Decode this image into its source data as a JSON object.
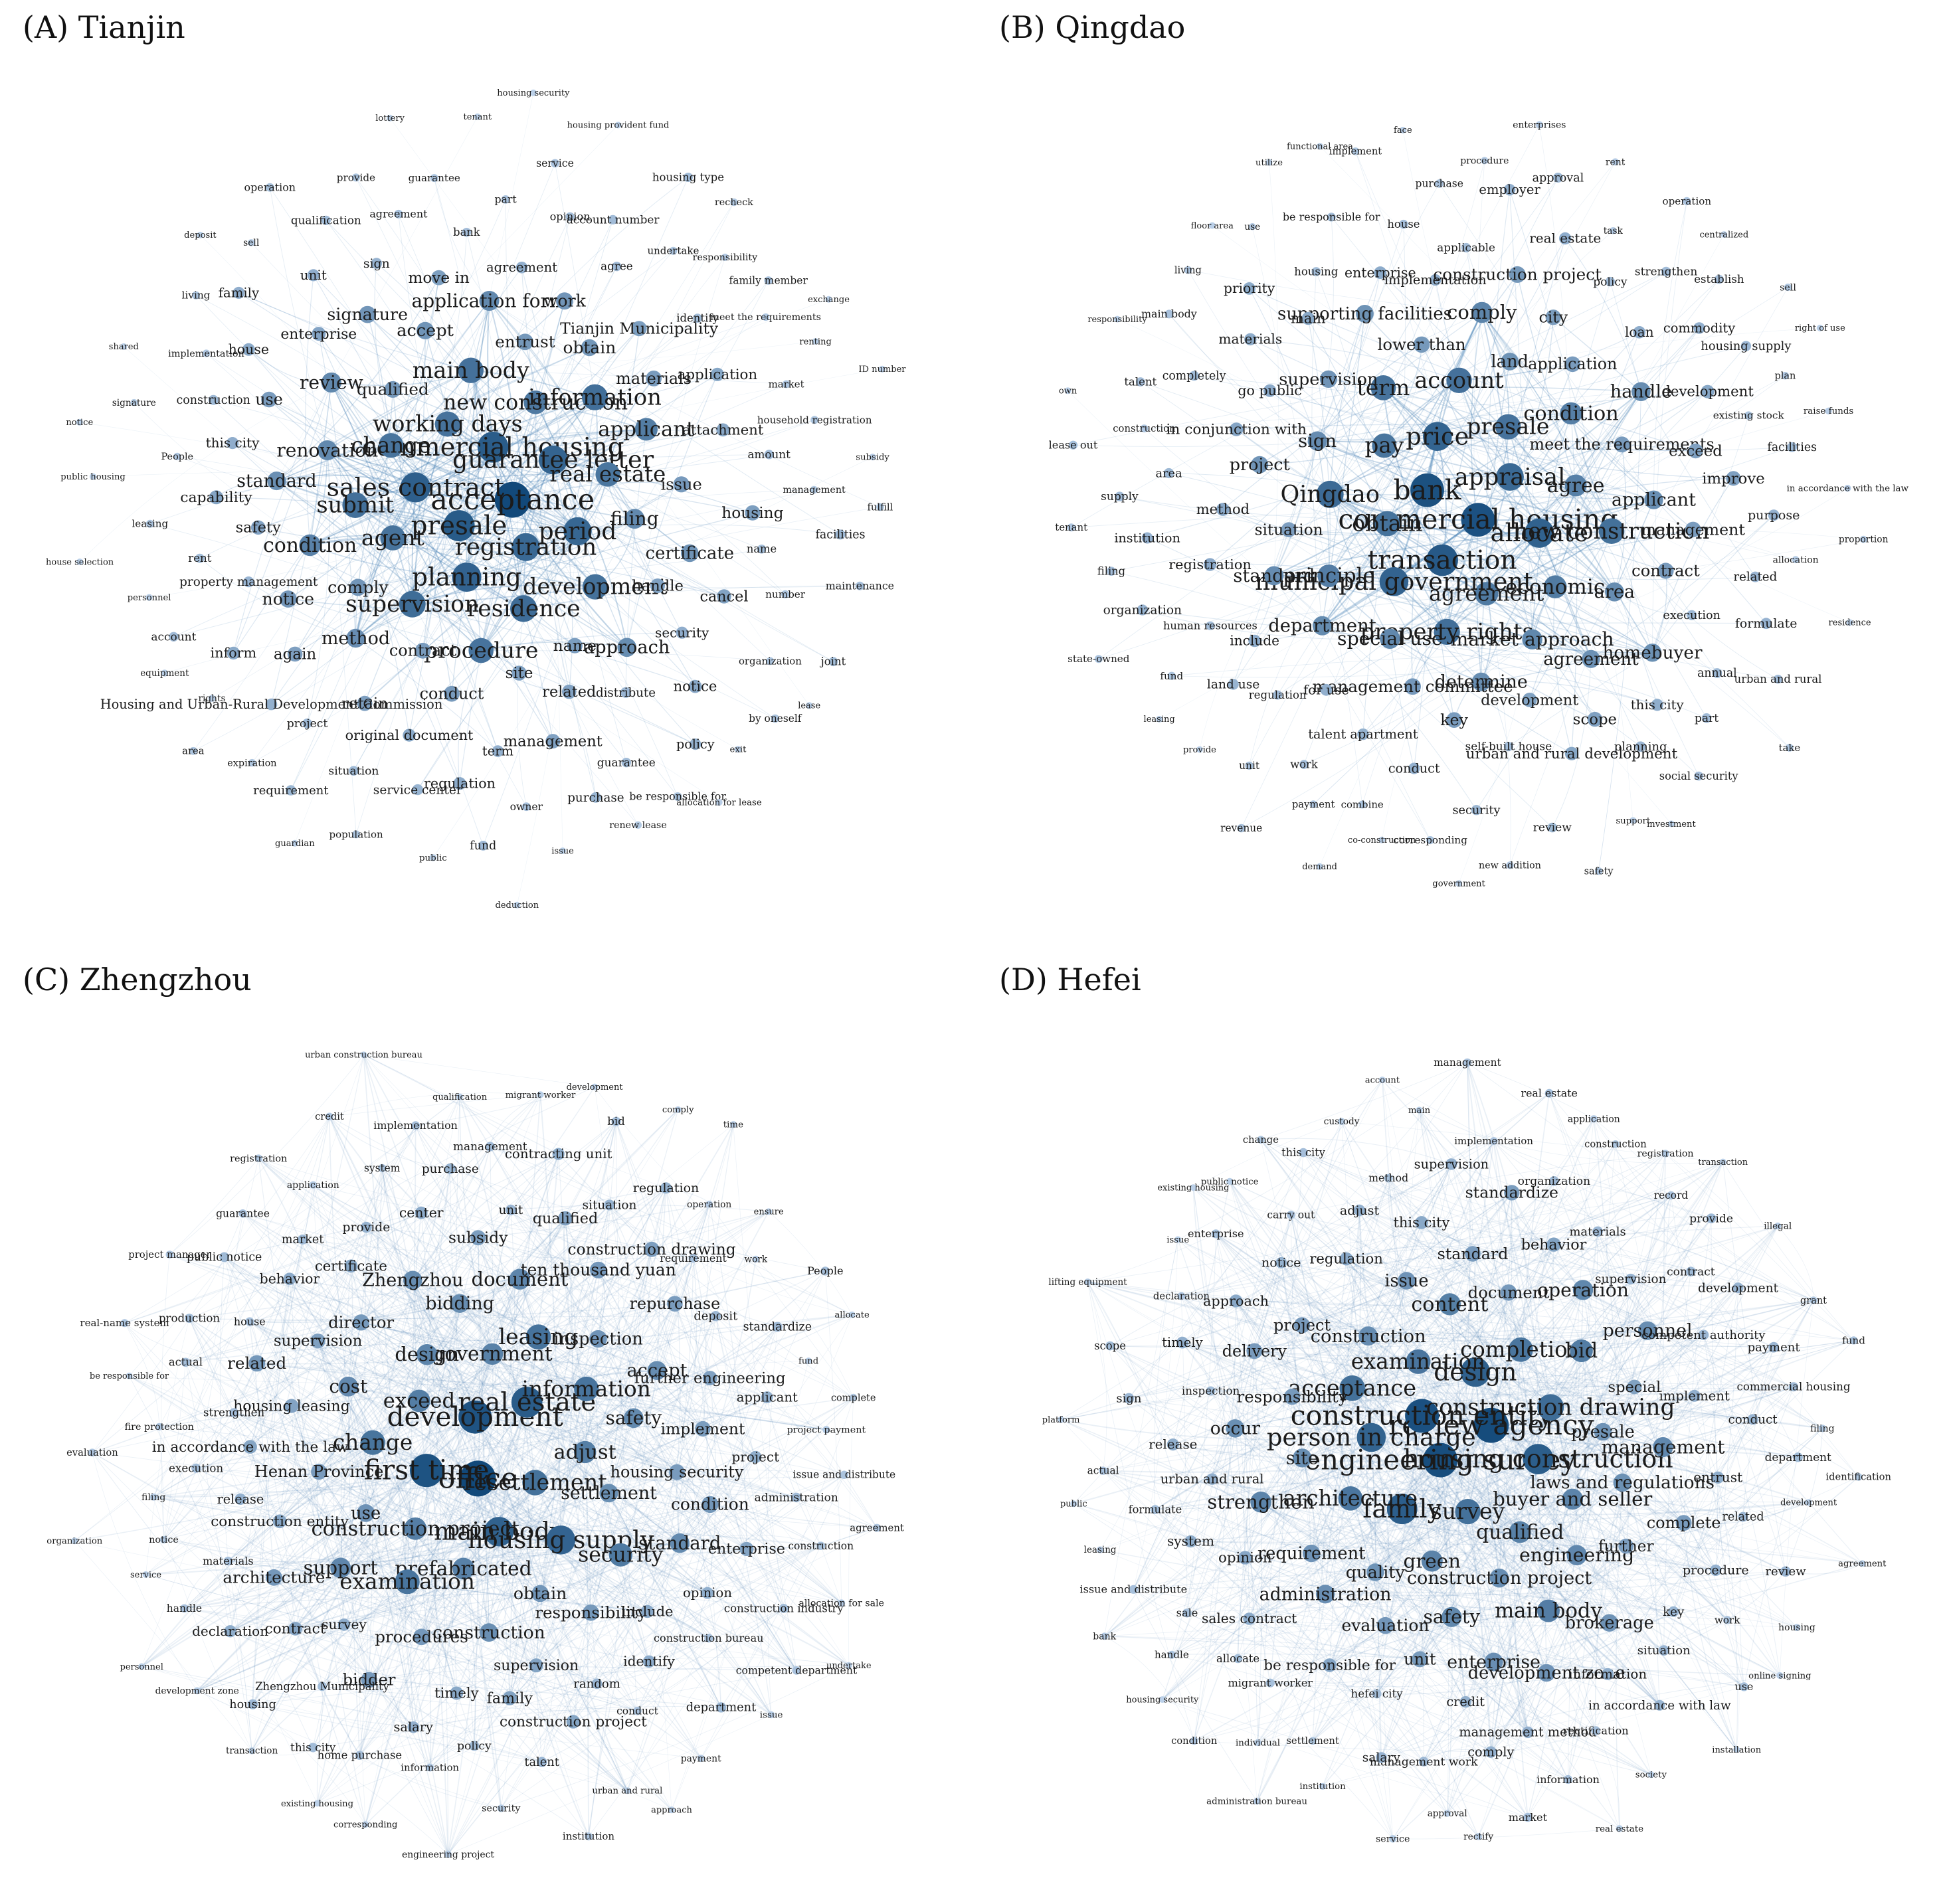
{
  "panels": [
    {
      "id": "tianjin",
      "title": "(A) Tianjin",
      "labels": [
        "acceptance",
        "presale",
        "commercial housing",
        "registration",
        "sales contract",
        "guarantee letter",
        "planning",
        "working days",
        "period",
        "agent",
        "new construction",
        "residence",
        "change",
        "real estate",
        "supervision",
        "main body",
        "development",
        "submit",
        "information",
        "procedure",
        "qualified",
        "filing",
        "comply",
        "entrust",
        "name",
        "renovation",
        "applicant",
        "contract",
        "accept",
        "handle",
        "condition",
        "obtain",
        "site",
        "review",
        "issue",
        "method",
        "application form",
        "approach",
        "standard",
        "materials",
        "conduct",
        "signature",
        "certificate",
        "notice",
        "work",
        "related",
        "use",
        "attachment",
        "retain",
        "move in",
        "security",
        "safety",
        "Tianjin Municipality",
        "term",
        "enterprise",
        "housing",
        "again",
        "agreement",
        "distribute",
        "this city",
        "application",
        "original document",
        "sign",
        "cancel",
        "property management",
        "agree",
        "management",
        "house",
        "amount",
        "project",
        "bank",
        "notice",
        "capability",
        "identify",
        "regulation",
        "unit",
        "name",
        "inform",
        "opinion",
        "guarantee",
        "construction",
        "market",
        "situation",
        "agreement",
        "organization",
        "rent",
        "undertake",
        "owner",
        "family",
        "management",
        "Housing and Urban-Rural Development Commission",
        "part",
        "policy",
        "People",
        "meet the requirements",
        "service center",
        "qualification",
        "number",
        "account",
        "account number",
        "purchase",
        "implementation",
        "household registration",
        "requirement",
        "guarantee",
        "by oneself",
        "leasing",
        "responsibility",
        "fund",
        "sell",
        "facilities",
        "rights",
        "service",
        "be responsible for",
        "signature",
        "renting",
        "population",
        "provide",
        "joint",
        "personnel",
        "housing type",
        "issue",
        "living",
        "subsidy",
        "expiration",
        "tenant",
        "exit",
        "public housing",
        "family member",
        "public",
        "operation",
        "maintenance",
        "equipment",
        "housing provident fund",
        "renew lease",
        "shared",
        "ID number",
        "guardian",
        "lottery",
        "lease",
        "house selection",
        "recheck",
        "deduction",
        "deposit",
        "fulfill",
        "area",
        "housing security",
        "allocation for lease",
        "notice",
        "exchange"
      ]
    },
    {
      "id": "qingdao",
      "title": "(B) Qingdao",
      "labels": [
        "commercial housing",
        "bank",
        "appraisal",
        "transaction",
        "price",
        "allocate",
        "obtain",
        "presale",
        "agreement",
        "pay",
        "agree",
        "municipal government",
        "account",
        "economic",
        "Qingdao",
        "condition",
        "property rights",
        "term",
        "new construction",
        "principle",
        "land",
        "market approach",
        "sign",
        "meet the requirements",
        "special use",
        "lower than",
        "area",
        "situation",
        "application",
        "determine",
        "supervision",
        "applicant",
        "department",
        "comply",
        "agreement",
        "project",
        "handle",
        "management committee",
        "supporting facilities",
        "contract",
        "standard",
        "city",
        "development",
        "go public",
        "exceed",
        "for use",
        "implementation",
        "homebuyer",
        "method",
        "loan",
        "key",
        "main",
        "management",
        "include",
        "construction project",
        "scope",
        "in conjunction with",
        "development",
        "talent apartment",
        "enterprise",
        "execution",
        "registration",
        "policy",
        "self-built house",
        "materials",
        "improve",
        "regulation",
        "applicable",
        "this city",
        "area",
        "commodity",
        "conduct",
        "housing",
        "related",
        "human resources",
        "real estate",
        "urban and rural development",
        "completely",
        "existing stock",
        "work",
        "house",
        "annual",
        "institution",
        "strengthen",
        "security",
        "priority",
        "purpose",
        "land use",
        "employer",
        "planning",
        "construction",
        "housing supply",
        "combine",
        "be responsible for",
        "formulate",
        "organization",
        "task",
        "review",
        "main body",
        "facilities",
        "unit",
        "purchase",
        "part",
        "supply",
        "establish",
        "corresponding",
        "use",
        "allocation",
        "fund",
        "approval",
        "support",
        "talent",
        "plan",
        "payment",
        "implement",
        "urban and rural",
        "filing",
        "operation",
        "new addition",
        "living",
        "in accordance with the law",
        "provide",
        "procedure",
        "social security",
        "lease out",
        "sell",
        "co-construction",
        "utilize",
        "residence",
        "state-owned",
        "rent",
        "safety",
        "responsibility",
        "raise funds",
        "revenue",
        "face",
        "take",
        "tenant",
        "centralized",
        "government",
        "floor area",
        "proportion",
        "leasing",
        "enterprises",
        "investment",
        "own",
        "right of use",
        "demand",
        "functional area"
      ]
    },
    {
      "id": "zhengzhou",
      "title": "(C) Zhengzhou",
      "labels": [
        "office",
        "development",
        "resettlement",
        "first time",
        "real estate",
        "main body",
        "exceed",
        "adjust",
        "construction project",
        "government",
        "housing supply",
        "change",
        "information",
        "prefabricated",
        "design",
        "settlement",
        "use",
        "leasing",
        "obtain",
        "cost",
        "safety",
        "examination",
        "bidding",
        "security",
        "Henan Province",
        "inspection",
        "construction",
        "director",
        "housing security",
        "support",
        "document",
        "responsibility",
        "housing leasing",
        "accept",
        "procedures",
        "Zhengzhou",
        "standard",
        "construction entity",
        "ten thousand yuan",
        "supervision",
        "supervision",
        "implement",
        "survey",
        "subsidy",
        "include",
        "in accordance with the law",
        "repurchase",
        "timely",
        "certificate",
        "condition",
        "architecture",
        "qualified",
        "random",
        "related",
        "further engineering",
        "bidder",
        "center",
        "opinion",
        "release",
        "construction drawing",
        "family",
        "behavior",
        "project",
        "contract",
        "unit",
        "identify",
        "strengthen",
        "deposit",
        "salary",
        "provide",
        "enterprise",
        "materials",
        "situation",
        "construction project",
        "house",
        "applicant",
        "Zhengzhou Municipality",
        "purchase",
        "construction bureau",
        "execution",
        "requirement",
        "policy",
        "market",
        "administration",
        "declaration",
        "contracting unit",
        "conduct",
        "actual",
        "standardize",
        "home purchase",
        "system",
        "construction industry",
        "notice",
        "regulation",
        "talent",
        "public notice",
        "project payment",
        "housing",
        "management",
        "department",
        "fire protection",
        "work",
        "information",
        "application",
        "construction",
        "handle",
        "bid",
        "urban and rural",
        "production",
        "fund",
        "this city",
        "implementation",
        "competent department",
        "filing",
        "operation",
        "security",
        "guarantee",
        "issue and distribute",
        "development zone",
        "migrant worker",
        "payment",
        "be responsible for",
        "People",
        "corresponding",
        "credit",
        "allocation for sale",
        "service",
        "comply",
        "institution",
        "project manager",
        "complete",
        "transaction",
        "qualification",
        "issue",
        "evaluation",
        "ensure",
        "engineering project",
        "registration",
        "agreement",
        "personnel",
        "development",
        "approach",
        "real-name system",
        "allocate",
        "existing housing",
        "urban construction bureau",
        "undertake",
        "organization",
        "time"
      ]
    },
    {
      "id": "hefei",
      "title": "(D) Hefei",
      "labels": [
        "engineering survey",
        "review agency",
        "survey",
        "construction entity",
        "housing construction",
        "family",
        "design",
        "qualified",
        "person in charge",
        "construction drawing",
        "green",
        "examination",
        "buyer and seller",
        "architecture",
        "completion",
        "construction project",
        "acceptance",
        "presale",
        "quality",
        "content",
        "engineering",
        "site",
        "bid",
        "safety",
        "construction",
        "laws and regulations",
        "requirement",
        "document",
        "main body",
        "responsibility",
        "special",
        "evaluation",
        "issue",
        "further",
        "strengthen",
        "operation",
        "enterprise",
        "project",
        "management",
        "administration",
        "standard",
        "brokerage",
        "occur",
        "personnel",
        "unit",
        "regulation",
        "complete",
        "opinion",
        "behavior",
        "development zone",
        "delivery",
        "implement",
        "be responsible for",
        "this city",
        "key",
        "urban and rural",
        "supervision",
        "credit",
        "notice",
        "entrust",
        "sales contract",
        "standardize",
        "information",
        "inspection",
        "competent authority",
        "hefei city",
        "adjust",
        "procedure",
        "system",
        "materials",
        "management method",
        "approach",
        "conduct",
        "migrant worker",
        "supervision",
        "situation",
        "release",
        "contract",
        "management work",
        "carry out",
        "related",
        "sale",
        "organization",
        "rectification",
        "timely",
        "payment",
        "settlement",
        "method",
        "work",
        "formulate",
        "record",
        "comply",
        "enterprise",
        "department",
        "allocate",
        "implementation",
        "in accordance with law",
        "sign",
        "development",
        "salary",
        "this city",
        "review",
        "issue and distribute",
        "construction",
        "information",
        "declaration",
        "commercial housing",
        "individual",
        "main",
        "use",
        "actual",
        "provide",
        "approval",
        "public notice",
        "development",
        "handle",
        "real estate",
        "society",
        "scope",
        "grant",
        "institution",
        "custody",
        "housing",
        "leasing",
        "registration",
        "market",
        "issue",
        "filing",
        "condition",
        "management",
        "installation",
        "platform",
        "illegal",
        "service",
        "change",
        "agreement",
        "bank",
        "application",
        "real estate",
        "lifting equipment",
        "fund",
        "administration bureau",
        "account",
        "online signing",
        "public",
        "transaction",
        "rectify",
        "existing housing",
        "identification",
        "housing security"
      ]
    }
  ]
}
